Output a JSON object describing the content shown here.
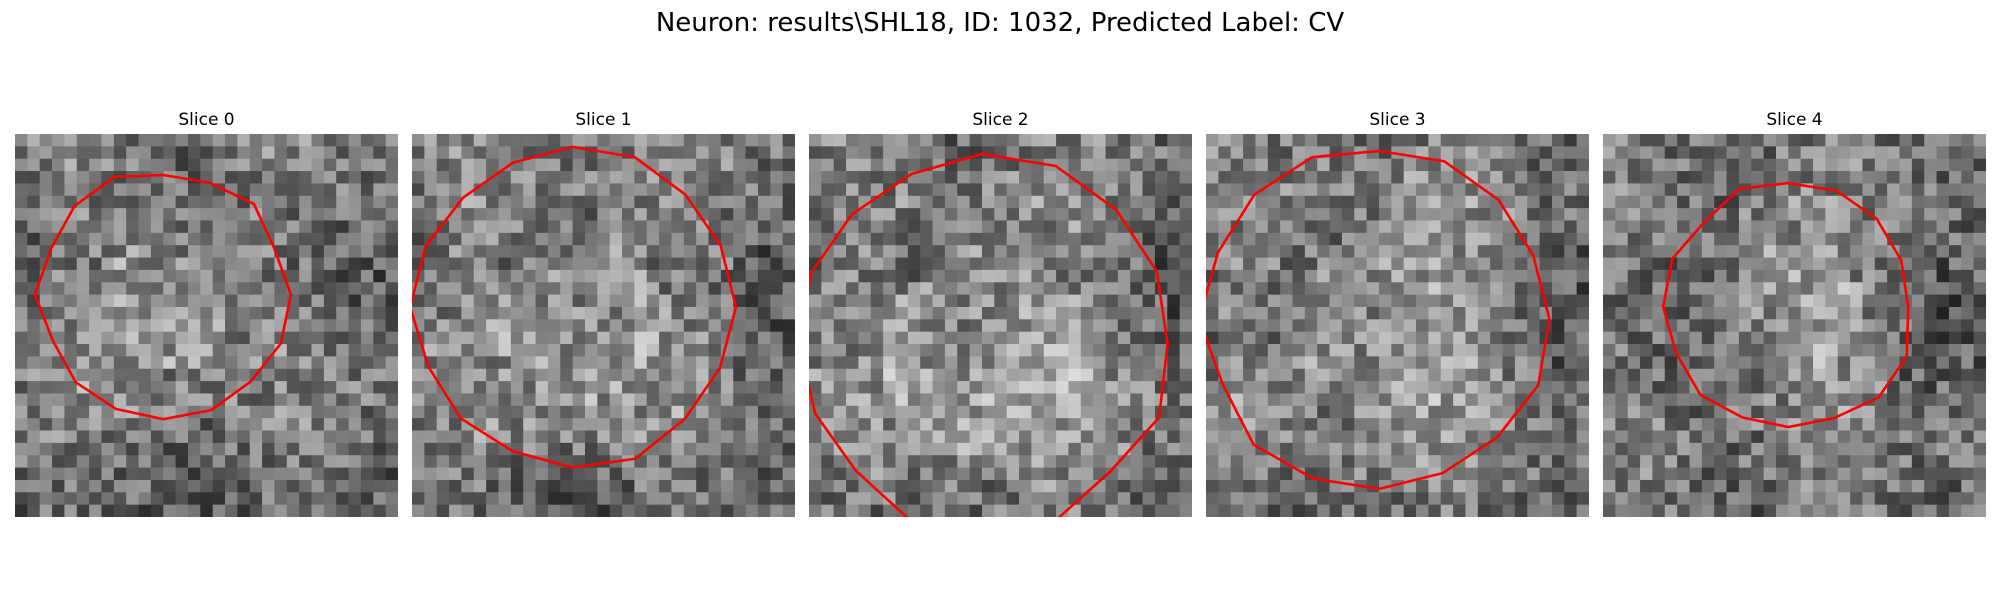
{
  "figure": {
    "title": "Neuron: results\\SHL18, ID: 1032, Predicted Label: CV"
  },
  "colors": {
    "contour": "#ff0000",
    "background": "#ffffff"
  },
  "panels": [
    {
      "title": "Slice 0",
      "contour": {
        "cx": 12,
        "cy": 13,
        "r": 10
      }
    },
    {
      "title": "Slice 1",
      "contour": {
        "cx": 13,
        "cy": 14,
        "r": 13
      }
    },
    {
      "title": "Slice 2",
      "contour": {
        "cx": 14,
        "cy": 17,
        "r": 15
      }
    },
    {
      "title": "Slice 3",
      "contour": {
        "cx": 14,
        "cy": 15,
        "r": 14
      }
    },
    {
      "title": "Slice 4",
      "contour": {
        "cx": 15,
        "cy": 14,
        "r": 10
      }
    }
  ]
}
